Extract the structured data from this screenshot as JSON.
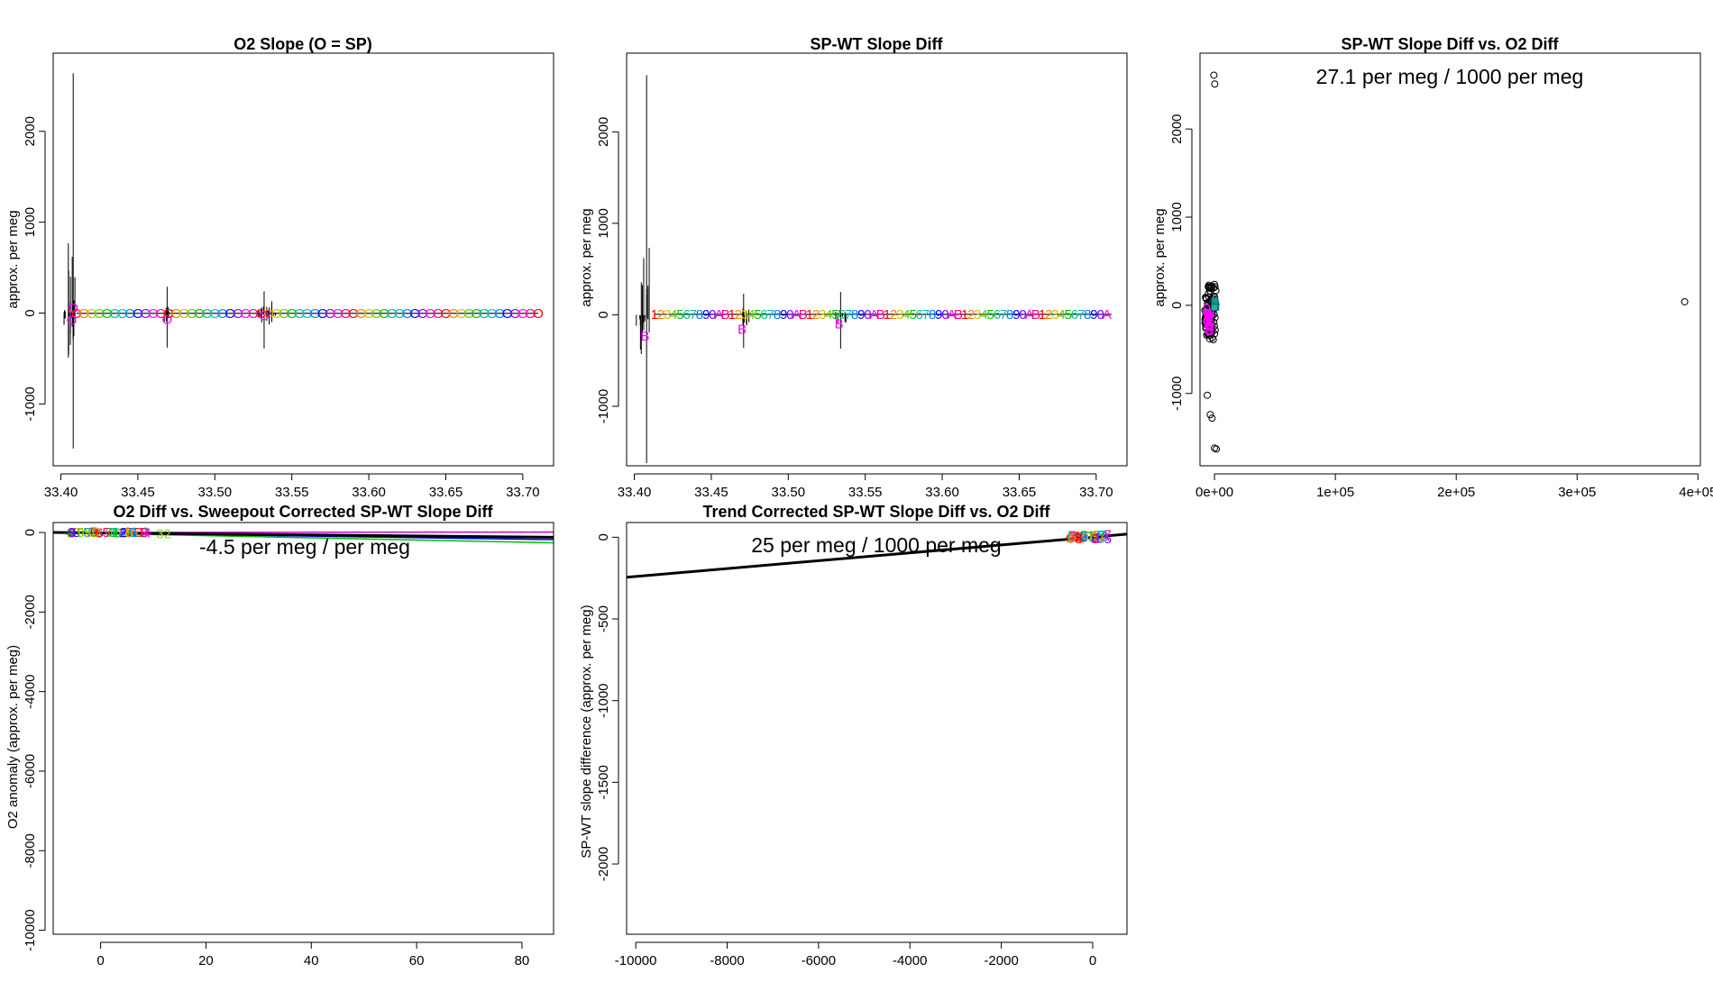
{
  "chart_data": [
    {
      "id": "p1",
      "type": "line",
      "title": "O2 Slope (O = SP)",
      "xlabel": "",
      "ylabel": "approx. per meg",
      "xlim": [
        33.395,
        33.72
      ],
      "ylim": [
        -1680,
        2860
      ],
      "xticks": [
        33.4,
        33.45,
        33.5,
        33.55,
        33.6,
        33.65,
        33.7
      ],
      "xtick_labels": [
        "33.40",
        "33.45",
        "33.50",
        "33.55",
        "33.60",
        "33.65",
        "33.70"
      ],
      "yticks": [
        -1000,
        0,
        1000,
        2000
      ],
      "ytick_labels": [
        "-1000",
        "0",
        "1000",
        "2000"
      ],
      "marker": "O",
      "x_start": 33.41,
      "x_end": 33.71,
      "x_step": 0.005,
      "y_level": -3,
      "spikes": [
        {
          "x": 33.408,
          "low": -1490,
          "high": 2640
        },
        {
          "x": 33.405,
          "low": -400,
          "high": 120
        },
        {
          "x": 33.469,
          "low": -380,
          "high": 290
        },
        {
          "x": 33.532,
          "low": -390,
          "high": 240
        },
        {
          "x": 33.537,
          "low": -100,
          "high": 130
        }
      ],
      "outliers": [
        {
          "x": 33.407,
          "y": -80
        },
        {
          "x": 33.408,
          "y": 55
        },
        {
          "x": 33.469,
          "y": -70
        },
        {
          "x": 33.532,
          "y": -30
        }
      ]
    },
    {
      "id": "p2",
      "type": "line",
      "title": "SP-WT Slope Diff",
      "xlabel": "",
      "ylabel": "approx. per meg",
      "xlim": [
        33.395,
        33.72
      ],
      "ylim": [
        -1650,
        2860
      ],
      "xticks": [
        33.4,
        33.45,
        33.5,
        33.55,
        33.6,
        33.65,
        33.7
      ],
      "xtick_labels": [
        "33.40",
        "33.45",
        "33.50",
        "33.55",
        "33.60",
        "33.65",
        "33.70"
      ],
      "yticks": [
        -1000,
        0,
        1000,
        2000
      ],
      "ytick_labels": [
        "-1000",
        "0",
        "1000",
        "2000"
      ],
      "symbols": [
        "1",
        "2",
        "3",
        "4",
        "5",
        "6",
        "7",
        "8",
        "9",
        "0",
        "A",
        "B"
      ],
      "x_start": 33.413,
      "x_end": 33.71,
      "x_step": 0.0042,
      "y_level": 5,
      "spikes": [
        {
          "x": 33.408,
          "low": -1620,
          "high": 2620
        },
        {
          "x": 33.404,
          "low": -380,
          "high": -30
        },
        {
          "x": 33.471,
          "low": -360,
          "high": 230
        },
        {
          "x": 33.534,
          "low": -370,
          "high": 250
        }
      ],
      "outliers": [
        {
          "x": 33.407,
          "y": -230
        },
        {
          "x": 33.47,
          "y": -160
        },
        {
          "x": 33.533,
          "y": -100
        }
      ]
    },
    {
      "id": "p3",
      "type": "scatter",
      "title": "SP-WT Slope Diff vs. O2 Diff",
      "annotation": "27.1 per meg / 1000 per meg",
      "xlabel": "",
      "ylabel": "approx. per meg",
      "xlim": [
        -12000,
        402000
      ],
      "ylim": [
        -1820,
        2860
      ],
      "xticks": [
        0,
        100000,
        200000,
        300000,
        400000
      ],
      "xtick_labels": [
        "0e+00",
        "1e+05",
        "2e+05",
        "3e+05",
        "4e+05"
      ],
      "yticks": [
        -1000,
        0,
        1000,
        2000
      ],
      "ytick_labels": [
        "-1000",
        "0",
        "1000",
        "2000"
      ],
      "points": [
        {
          "x": -500,
          "y": 2610
        },
        {
          "x": 200,
          "y": 2510
        },
        {
          "x": -6000,
          "y": -1020
        },
        {
          "x": -3500,
          "y": -1240
        },
        {
          "x": -2000,
          "y": -1280
        },
        {
          "x": 0,
          "y": -1620
        },
        {
          "x": 1500,
          "y": -1630
        },
        {
          "x": 389000,
          "y": 40
        },
        {
          "x": -4000,
          "y": -380
        },
        {
          "x": -2000,
          "y": -370
        },
        {
          "x": -1000,
          "y": -390
        },
        {
          "x": -5500,
          "y": -330
        }
      ],
      "cluster": {
        "x_min": -8000,
        "x_max": 1500,
        "y_min": -340,
        "y_max": 240
      }
    },
    {
      "id": "p4",
      "type": "scatter",
      "title": "O2 Diff vs. Sweepout Corrected SP-WT Slope Diff",
      "annotation": "-4.5 per meg / per meg",
      "xlabel": "",
      "ylabel": "O2 anomaly (approx. per meg)",
      "xlim": [
        -9,
        86
      ],
      "ylim": [
        -10100,
        250
      ],
      "xticks": [
        0,
        20,
        40,
        60,
        80
      ],
      "xtick_labels": [
        "0",
        "20",
        "40",
        "60",
        "80"
      ],
      "yticks": [
        -10000,
        -8000,
        -6000,
        -4000,
        -2000,
        0
      ],
      "ytick_labels": [
        "-10000",
        "-8000",
        "-6000",
        "-4000",
        "-2000",
        "0"
      ],
      "fit_lines": [
        {
          "y0": 0,
          "y1": -110,
          "color": "#ff00ff"
        },
        {
          "y0": 0,
          "y1": -260,
          "color": "#00c000"
        },
        {
          "y0": 0,
          "y1": -180,
          "color": "#0000ff"
        },
        {
          "y0": 0,
          "y1": 10,
          "color": "#d000d0"
        },
        {
          "y0": 0,
          "y1": -120,
          "color": "#000000"
        }
      ],
      "symbols": [
        "0",
        "1",
        "2",
        "3",
        "4",
        "5",
        "6",
        "7",
        "8",
        "9",
        "A",
        "B",
        "D",
        "O",
        "T"
      ],
      "sym_x_range": [
        -6,
        9
      ],
      "extra_labels": [
        {
          "text": "32",
          "x": 12,
          "y": -30
        }
      ]
    },
    {
      "id": "p5",
      "type": "scatter",
      "title": "Trend Corrected SP-WT Slope Diff vs. O2 Diff",
      "annotation": "25 per meg / 1000 per meg",
      "xlabel": "",
      "ylabel": "SP-WT slope difference (approx. per meg)",
      "xlim": [
        -10200,
        750
      ],
      "ylim": [
        -2430,
        90
      ],
      "xticks": [
        -10000,
        -8000,
        -6000,
        -4000,
        -2000,
        0
      ],
      "xtick_labels": [
        "-10000",
        "-8000",
        "-6000",
        "-4000",
        "-2000",
        "0"
      ],
      "yticks": [
        -2000,
        -1500,
        -1000,
        -500,
        0
      ],
      "ytick_labels": [
        "-2000",
        "-1500",
        "-1000",
        "-500",
        "0"
      ],
      "fit": {
        "x0": -10200,
        "y0": -245,
        "x1": 750,
        "y1": 19
      },
      "symbols": [
        "0",
        "1",
        "2",
        "3",
        "4",
        "5",
        "6",
        "7",
        "8",
        "9",
        "A",
        "B",
        "C",
        "D",
        "E",
        "F"
      ],
      "sym_x_range": [
        -550,
        350
      ]
    }
  ]
}
